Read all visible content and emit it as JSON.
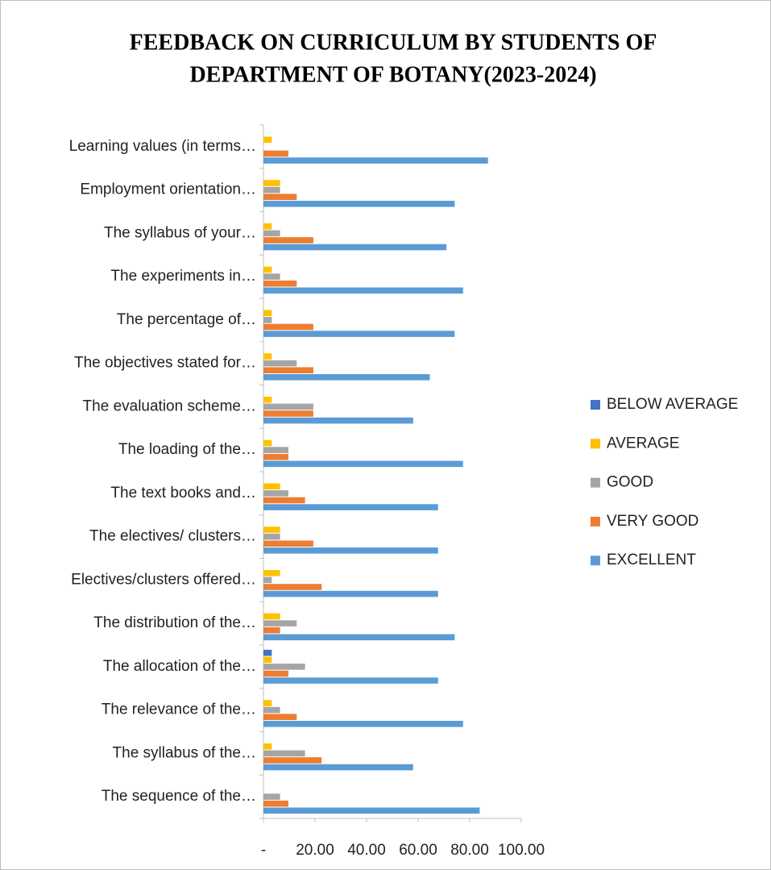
{
  "chart_data": {
    "type": "bar",
    "orientation": "horizontal",
    "title": [
      "FEEDBACK ON CURRICULUM BY STUDENTS OF",
      "DEPARTMENT OF BOTANY(2023-2024)"
    ],
    "categories": [
      "The sequence of the…",
      "The syllabus of the…",
      "The relevance of the…",
      "The allocation of the…",
      "The distribution of the…",
      "Electives/clusters offered…",
      "The electives/ clusters…",
      "The text books and…",
      "The loading of the…",
      "The evaluation scheme…",
      "The objectives stated for…",
      "The percentage of…",
      "The experiments in…",
      "The syllabus of your…",
      "Employment orientation…",
      "Learning values (in terms…"
    ],
    "series": [
      {
        "name": "BELOW AVERAGE",
        "color": "#4472c4",
        "values": [
          0,
          0,
          0,
          3.23,
          0,
          0,
          0,
          0,
          0,
          0,
          0,
          0,
          0,
          0,
          0,
          0
        ]
      },
      {
        "name": "AVERAGE",
        "color": "#ffc000",
        "values": [
          0,
          3.23,
          3.23,
          3.23,
          6.45,
          6.45,
          6.45,
          6.45,
          3.23,
          3.23,
          3.23,
          3.23,
          3.23,
          3.23,
          6.45,
          3.23
        ]
      },
      {
        "name": "GOOD",
        "color": "#a5a5a5",
        "values": [
          6.45,
          16.13,
          6.45,
          16.13,
          12.9,
          3.23,
          6.45,
          9.68,
          9.68,
          19.35,
          12.9,
          3.23,
          6.45,
          6.45,
          6.45,
          0
        ]
      },
      {
        "name": "VERY GOOD",
        "color": "#ed7d31",
        "values": [
          9.68,
          22.58,
          12.9,
          9.68,
          6.45,
          22.58,
          19.35,
          16.13,
          9.68,
          19.35,
          19.35,
          19.35,
          12.9,
          19.35,
          12.9,
          9.68
        ]
      },
      {
        "name": "EXCELLENT",
        "color": "#5b9bd5",
        "values": [
          83.87,
          58.06,
          77.42,
          67.74,
          74.19,
          67.74,
          67.74,
          67.74,
          77.42,
          58.06,
          64.52,
          74.19,
          77.42,
          70.97,
          74.19,
          87.1
        ]
      }
    ],
    "xlim": [
      0,
      100
    ],
    "xticks": [
      {
        "value": 0,
        "label": "-"
      },
      {
        "value": 20,
        "label": "20.00"
      },
      {
        "value": 40,
        "label": "40.00"
      },
      {
        "value": 60,
        "label": "60.00"
      },
      {
        "value": 80,
        "label": "80.00"
      },
      {
        "value": 100,
        "label": "100.00"
      }
    ],
    "legend": "right",
    "grid": false
  }
}
